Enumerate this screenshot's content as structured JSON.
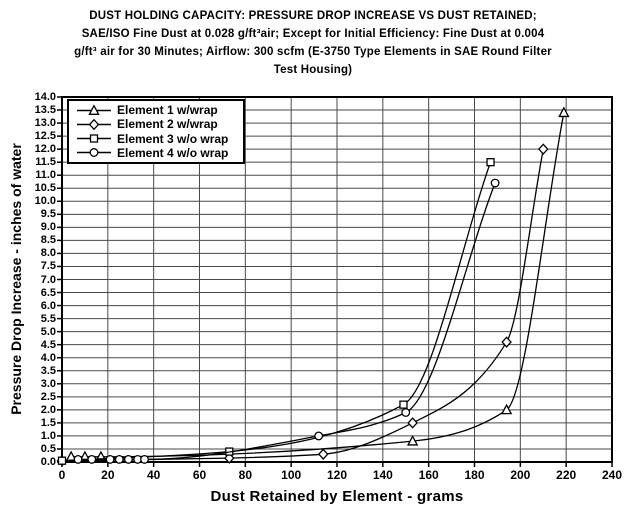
{
  "title": {
    "lines": [
      "DUST HOLDING CAPACITY: PRESSURE DROP INCREASE VS DUST RETAINED;",
      "SAE/ISO Fine Dust at 0.028 g/ft³air; Except for Initial Efficiency: Fine Dust at 0.004",
      "g/ft³ air for 30 Minutes; Airflow: 300 scfm (E-3750 Type Elements in SAE Round Filter",
      "Test Housing)"
    ]
  },
  "axes": {
    "x": {
      "label": "Dust Retained by Element - grams",
      "min": 0,
      "max": 240,
      "tick_step": 20,
      "tick_labels": [
        "0",
        "20",
        "40",
        "60",
        "80",
        "100",
        "120",
        "140",
        "160",
        "180",
        "200",
        "220",
        "240"
      ]
    },
    "y": {
      "label": "Pressure Drop Increase - inches of water",
      "min": 0,
      "max": 14,
      "tick_step": 0.5,
      "tick_labels": [
        "0.0",
        "0.5",
        "1.0",
        "1.5",
        "2.0",
        "2.5",
        "3.0",
        "3.5",
        "4.0",
        "4.5",
        "5.0",
        "5.5",
        "6.0",
        "6.5",
        "7.0",
        "7.5",
        "8.0",
        "8.5",
        "9.0",
        "9.5",
        "10.0",
        "10.5",
        "11.0",
        "11.5",
        "12.0",
        "12.5",
        "13.0",
        "13.5",
        "14.0"
      ]
    }
  },
  "legend": {
    "position": "top-left",
    "items": [
      {
        "label": "Element 1 w/wrap",
        "marker": "triangle"
      },
      {
        "label": "Element 2 w/wrap",
        "marker": "diamond"
      },
      {
        "label": "Element 3 w/o wrap",
        "marker": "square"
      },
      {
        "label": "Element 4 w/o wrap",
        "marker": "circle"
      }
    ]
  },
  "chart_data": {
    "type": "line",
    "title": "DUST HOLDING CAPACITY: PRESSURE DROP INCREASE VS DUST RETAINED",
    "xlabel": "Dust Retained by Element - grams",
    "ylabel": "Pressure Drop Increase - inches of water",
    "xlim": [
      0,
      240
    ],
    "ylim": [
      0,
      14
    ],
    "grid": true,
    "legend_position": "top-left",
    "series": [
      {
        "name": "Element 1 w/wrap",
        "marker": "triangle",
        "points": [
          [
            4,
            0.2
          ],
          [
            10,
            0.2
          ],
          [
            17,
            0.2
          ],
          [
            153,
            0.8
          ],
          [
            194,
            2.0
          ],
          [
            219,
            13.4
          ]
        ]
      },
      {
        "name": "Element 2 w/wrap",
        "marker": "diamond",
        "points": [
          [
            0,
            0.05
          ],
          [
            73,
            0.15
          ],
          [
            114,
            0.3
          ],
          [
            153,
            1.5
          ],
          [
            194,
            4.6
          ],
          [
            210,
            12.0
          ]
        ]
      },
      {
        "name": "Element 3 w/o wrap",
        "marker": "square",
        "points": [
          [
            0,
            0.05
          ],
          [
            73,
            0.4
          ],
          [
            149,
            2.2
          ],
          [
            187,
            11.5
          ]
        ]
      },
      {
        "name": "Element 4 w/o wrap",
        "marker": "circle",
        "points": [
          [
            7,
            0.1
          ],
          [
            13,
            0.1
          ],
          [
            21,
            0.1
          ],
          [
            25,
            0.1
          ],
          [
            29,
            0.1
          ],
          [
            33,
            0.1
          ],
          [
            36,
            0.1
          ],
          [
            112,
            1.0
          ],
          [
            150,
            1.9
          ],
          [
            189,
            10.7
          ]
        ]
      }
    ]
  },
  "colors": {
    "ink": "#000000",
    "grid": "#4a4a4a",
    "paper": "#ffffff",
    "marker_fill": "#ffffff"
  }
}
